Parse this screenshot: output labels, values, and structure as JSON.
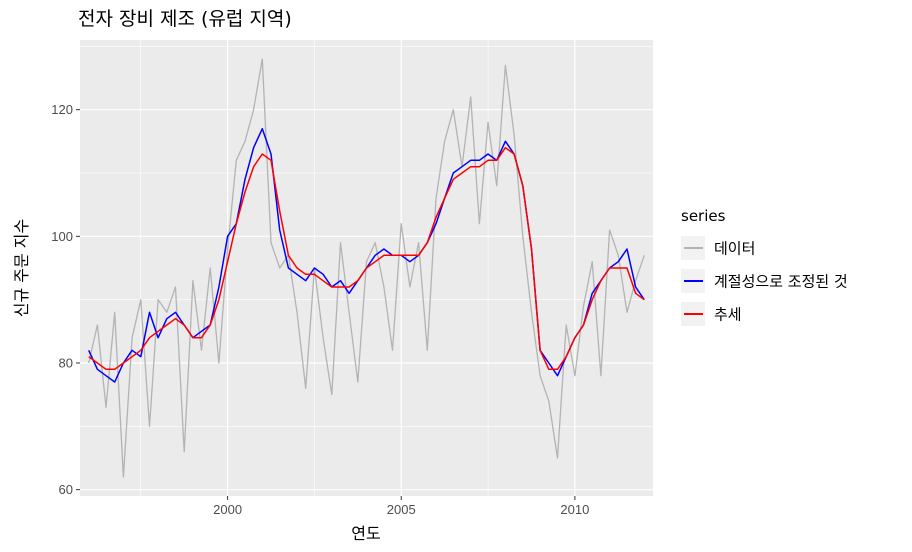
{
  "chart_data": {
    "type": "line",
    "title": "전자 장비 제조 (유럽 지역)",
    "xlabel": "연도",
    "ylabel": "신규 주문 지수",
    "xlim": [
      1995.75,
      2012.25
    ],
    "ylim": [
      59,
      131
    ],
    "x_ticks": [
      2000,
      2005,
      2010
    ],
    "y_ticks": [
      60,
      80,
      100,
      120
    ],
    "grid": true,
    "legend": {
      "title": "series",
      "position": "right"
    },
    "colors": {
      "panel": "#ebebeb",
      "grid": "#ffffff"
    },
    "series": [
      {
        "name": "데이터",
        "color": "#b3b3b3",
        "x": [
          1996.0,
          1996.25,
          1996.5,
          1996.75,
          1997.0,
          1997.25,
          1997.5,
          1997.75,
          1998.0,
          1998.25,
          1998.5,
          1998.75,
          1999.0,
          1999.25,
          1999.5,
          1999.75,
          2000.0,
          2000.25,
          2000.5,
          2000.75,
          2001.0,
          2001.25,
          2001.5,
          2001.75,
          2002.0,
          2002.25,
          2002.5,
          2002.75,
          2003.0,
          2003.25,
          2003.5,
          2003.75,
          2004.0,
          2004.25,
          2004.5,
          2004.75,
          2005.0,
          2005.25,
          2005.5,
          2005.75,
          2006.0,
          2006.25,
          2006.5,
          2006.75,
          2007.0,
          2007.25,
          2007.5,
          2007.75,
          2008.0,
          2008.25,
          2008.5,
          2008.75,
          2009.0,
          2009.25,
          2009.5,
          2009.75,
          2010.0,
          2010.25,
          2010.5,
          2010.75,
          2011.0,
          2011.25,
          2011.5,
          2011.75,
          2012.0
        ],
        "y": [
          80,
          86,
          73,
          88,
          62,
          84,
          90,
          70,
          90,
          88,
          92,
          66,
          93,
          82,
          95,
          80,
          98,
          112,
          115,
          120,
          128,
          99,
          95,
          97,
          88,
          76,
          95,
          84,
          75,
          99,
          88,
          77,
          96,
          99,
          92,
          82,
          102,
          92,
          99,
          82,
          106,
          115,
          120,
          111,
          122,
          102,
          118,
          108,
          127,
          116,
          100,
          88,
          78,
          74,
          65,
          86,
          78,
          89,
          96,
          78,
          101,
          97,
          88,
          93,
          97
        ]
      },
      {
        "name": "계절성으로 조정된 것",
        "color": "#0000ff",
        "x": [
          1996.0,
          1996.25,
          1996.5,
          1996.75,
          1997.0,
          1997.25,
          1997.5,
          1997.75,
          1998.0,
          1998.25,
          1998.5,
          1998.75,
          1999.0,
          1999.25,
          1999.5,
          1999.75,
          2000.0,
          2000.25,
          2000.5,
          2000.75,
          2001.0,
          2001.25,
          2001.5,
          2001.75,
          2002.0,
          2002.25,
          2002.5,
          2002.75,
          2003.0,
          2003.25,
          2003.5,
          2003.75,
          2004.0,
          2004.25,
          2004.5,
          2004.75,
          2005.0,
          2005.25,
          2005.5,
          2005.75,
          2006.0,
          2006.25,
          2006.5,
          2006.75,
          2007.0,
          2007.25,
          2007.5,
          2007.75,
          2008.0,
          2008.25,
          2008.5,
          2008.75,
          2009.0,
          2009.25,
          2009.5,
          2009.75,
          2010.0,
          2010.25,
          2010.5,
          2010.75,
          2011.0,
          2011.25,
          2011.5,
          2011.75,
          2012.0
        ],
        "y": [
          82,
          79,
          78,
          77,
          80,
          82,
          81,
          88,
          84,
          87,
          88,
          86,
          84,
          85,
          86,
          92,
          100,
          102,
          109,
          114,
          117,
          113,
          101,
          95,
          94,
          93,
          95,
          94,
          92,
          93,
          91,
          93,
          95,
          97,
          98,
          97,
          97,
          96,
          97,
          99,
          102,
          106,
          110,
          111,
          112,
          112,
          113,
          112,
          115,
          113,
          108,
          98,
          82,
          80,
          78,
          81,
          84,
          86,
          91,
          93,
          95,
          96,
          98,
          92,
          90
        ]
      },
      {
        "name": "추세",
        "color": "#ff0000",
        "x": [
          1996.0,
          1996.25,
          1996.5,
          1996.75,
          1997.0,
          1997.25,
          1997.5,
          1997.75,
          1998.0,
          1998.25,
          1998.5,
          1998.75,
          1999.0,
          1999.25,
          1999.5,
          1999.75,
          2000.0,
          2000.25,
          2000.5,
          2000.75,
          2001.0,
          2001.25,
          2001.5,
          2001.75,
          2002.0,
          2002.25,
          2002.5,
          2002.75,
          2003.0,
          2003.25,
          2003.5,
          2003.75,
          2004.0,
          2004.25,
          2004.5,
          2004.75,
          2005.0,
          2005.25,
          2005.5,
          2005.75,
          2006.0,
          2006.25,
          2006.5,
          2006.75,
          2007.0,
          2007.25,
          2007.5,
          2007.75,
          2008.0,
          2008.25,
          2008.5,
          2008.75,
          2009.0,
          2009.25,
          2009.5,
          2009.75,
          2010.0,
          2010.25,
          2010.5,
          2010.75,
          2011.0,
          2011.25,
          2011.5,
          2011.75,
          2012.0
        ],
        "y": [
          81,
          80,
          79,
          79,
          80,
          81,
          82,
          84,
          85,
          86,
          87,
          86,
          84,
          84,
          86,
          90,
          96,
          102,
          107,
          111,
          113,
          112,
          104,
          97,
          95,
          94,
          94,
          93,
          92,
          92,
          92,
          93,
          95,
          96,
          97,
          97,
          97,
          97,
          97,
          99,
          103,
          106,
          109,
          110,
          111,
          111,
          112,
          112,
          114,
          113,
          108,
          98,
          82,
          79,
          79,
          81,
          84,
          86,
          90,
          93,
          95,
          95,
          95,
          91,
          90
        ]
      }
    ]
  }
}
